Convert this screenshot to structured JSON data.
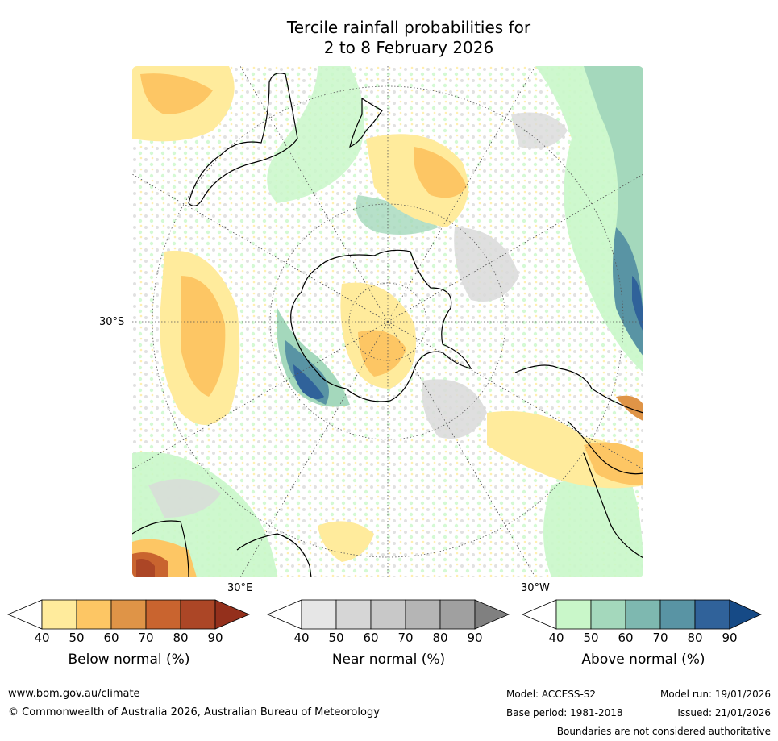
{
  "title": {
    "line1": "Tercile rainfall probabilities for",
    "line2": "2 to 8 February 2026"
  },
  "map": {
    "projection": "south-polar-stereographic",
    "lat_labels": [
      "30°S"
    ],
    "lon_labels": [
      "30°E",
      "30°W"
    ],
    "graticule": "dotted",
    "colors": {
      "below_light": "#ffeb9c",
      "below_mid": "#fdc664",
      "near": "#d9d9d9",
      "above_light": "#c9f7c9",
      "above_mid": "#a4d8bc",
      "above_dark": "#2f5f8f",
      "coast": "#000000"
    }
  },
  "colorbars": [
    {
      "name": "below",
      "label": "Below normal (%)",
      "ticks": [
        "40",
        "50",
        "60",
        "70",
        "80",
        "90"
      ],
      "colors": [
        "#ffeb9c",
        "#fdc664",
        "#df9447",
        "#c9642f",
        "#ac4626",
        "#94301c"
      ]
    },
    {
      "name": "near",
      "label": "Near normal (%)",
      "ticks": [
        "40",
        "50",
        "60",
        "70",
        "80",
        "90"
      ],
      "colors": [
        "#e6e6e6",
        "#d6d6d6",
        "#c8c8c8",
        "#b5b5b5",
        "#a0a0a0",
        "#808080"
      ]
    },
    {
      "name": "above",
      "label": "Above normal (%)",
      "ticks": [
        "40",
        "50",
        "60",
        "70",
        "80",
        "90"
      ],
      "colors": [
        "#c9f7c9",
        "#a4d8bc",
        "#7eb8b0",
        "#5994a4",
        "#30629a",
        "#164a86"
      ]
    }
  ],
  "footer": {
    "website": "www.bom.gov.au/climate",
    "copyright": "© Commonwealth of Australia 2026, Australian Bureau of Meteorology",
    "model": "Model: ACCESS-S2",
    "model_run": "Model run: 19/01/2026",
    "base_period": "Base period: 1981-2018",
    "issued": "Issued: 21/01/2026",
    "disclaimer": "Boundaries are not considered authoritative"
  }
}
